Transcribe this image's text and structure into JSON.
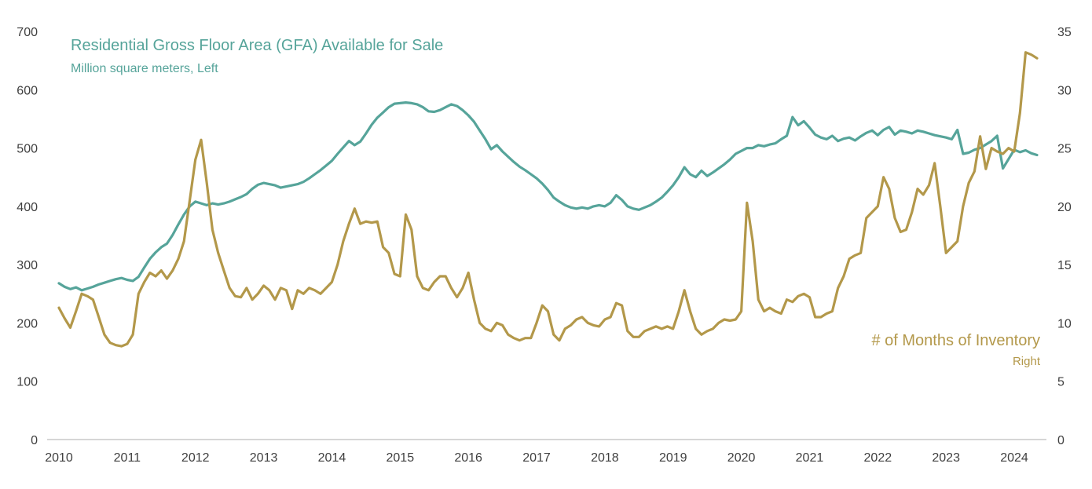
{
  "chart_data": {
    "type": "line",
    "title_left_series": "Residential Gross Floor Area (GFA) Available for Sale",
    "subtitle_left_series": "Million square meters, Left",
    "title_right_series": "# of Months of Inventory",
    "subtitle_right_series": "Right",
    "x_start": "2010-01",
    "x_labels": [
      "2010",
      "2011",
      "2012",
      "2013",
      "2014",
      "2015",
      "2016",
      "2017",
      "2018",
      "2019",
      "2020",
      "2021",
      "2022",
      "2023",
      "2024"
    ],
    "left_axis": {
      "min": 0,
      "max": 700,
      "ticks": [
        0,
        100,
        200,
        300,
        400,
        500,
        600,
        700
      ]
    },
    "right_axis": {
      "min": 0,
      "max": 35,
      "ticks": [
        0,
        5,
        10,
        15,
        20,
        25,
        30,
        35
      ]
    },
    "grid": "off",
    "legend": "inline-annotations",
    "colors": {
      "gfa": "#56A49A",
      "inventory": "#B3984A",
      "axis_text": "#3f3f3f",
      "axis_line": "#c9c9c9"
    },
    "series": [
      {
        "name": "Residential Gross Floor Area (GFA) Available for Sale",
        "axis": "left",
        "color": "#56A49A",
        "values": [
          268,
          262,
          258,
          261,
          256,
          259,
          262,
          266,
          269,
          272,
          275,
          277,
          274,
          272,
          279,
          295,
          310,
          321,
          330,
          336,
          351,
          369,
          386,
          400,
          408,
          405,
          402,
          405,
          403,
          405,
          408,
          412,
          416,
          421,
          430,
          437,
          440,
          438,
          436,
          432,
          434,
          436,
          438,
          442,
          448,
          455,
          462,
          470,
          478,
          490,
          501,
          512,
          505,
          511,
          525,
          540,
          552,
          561,
          570,
          576,
          577,
          578,
          577,
          575,
          570,
          563,
          562,
          565,
          570,
          575,
          572,
          565,
          556,
          545,
          530,
          515,
          498,
          505,
          494,
          485,
          476,
          468,
          462,
          455,
          448,
          439,
          428,
          415,
          408,
          402,
          398,
          396,
          398,
          396,
          400,
          402,
          400,
          406,
          419,
          411,
          400,
          396,
          394,
          398,
          402,
          408,
          415,
          425,
          436,
          450,
          467,
          455,
          450,
          461,
          452,
          458,
          465,
          472,
          480,
          490,
          495,
          500,
          500,
          505,
          503,
          506,
          508,
          515,
          521,
          553,
          539,
          546,
          535,
          523,
          518,
          515,
          521,
          512,
          516,
          518,
          513,
          520,
          526,
          530,
          522,
          531,
          536,
          523,
          530,
          528,
          525,
          530,
          528,
          525,
          522,
          520,
          518,
          515,
          531,
          490,
          492,
          497,
          500,
          506,
          512,
          521,
          465,
          481,
          497,
          493,
          496,
          491,
          488
        ]
      },
      {
        "name": "# of Months of Inventory",
        "axis": "right",
        "color": "#B3984A",
        "values": [
          11.3,
          10.4,
          9.6,
          11.0,
          12.5,
          12.3,
          12.0,
          10.5,
          9.0,
          8.3,
          8.1,
          8.0,
          8.2,
          9.0,
          12.5,
          13.5,
          14.3,
          14.0,
          14.5,
          13.8,
          14.5,
          15.5,
          17.0,
          20.5,
          24.0,
          25.7,
          22.0,
          18.0,
          16.0,
          14.5,
          13.0,
          12.3,
          12.2,
          13.0,
          12.0,
          12.5,
          13.2,
          12.8,
          12.0,
          13.0,
          12.8,
          11.2,
          12.8,
          12.5,
          13.0,
          12.8,
          12.5,
          13.0,
          13.5,
          15.0,
          17.0,
          18.5,
          19.8,
          18.5,
          18.7,
          18.6,
          18.7,
          16.5,
          16.0,
          14.2,
          14.0,
          19.3,
          18.0,
          14.0,
          13.0,
          12.8,
          13.5,
          14.0,
          14.0,
          13.0,
          12.2,
          13.0,
          14.3,
          12.0,
          10.0,
          9.5,
          9.3,
          10.0,
          9.8,
          9.0,
          8.7,
          8.5,
          8.7,
          8.7,
          10.0,
          11.5,
          11.0,
          9.0,
          8.5,
          9.5,
          9.8,
          10.3,
          10.5,
          10.0,
          9.8,
          9.7,
          10.3,
          10.5,
          11.7,
          11.5,
          9.3,
          8.8,
          8.8,
          9.3,
          9.5,
          9.7,
          9.5,
          9.7,
          9.5,
          11.0,
          12.8,
          11.0,
          9.5,
          9.0,
          9.3,
          9.5,
          10.0,
          10.3,
          10.2,
          10.3,
          11.0,
          20.3,
          17.0,
          12.0,
          11.0,
          11.3,
          11.0,
          10.8,
          12.0,
          11.8,
          12.3,
          12.5,
          12.2,
          10.5,
          10.5,
          10.8,
          11.0,
          13.0,
          14.0,
          15.5,
          15.8,
          16.0,
          19.0,
          19.5,
          20.0,
          22.5,
          21.5,
          19.0,
          17.8,
          18.0,
          19.5,
          21.5,
          21.0,
          21.8,
          23.7,
          20.0,
          16.0,
          16.5,
          17.0,
          20.0,
          22.0,
          23.0,
          26.0,
          23.2,
          25.0,
          24.7,
          24.5,
          25.0,
          24.7,
          28.0,
          33.2,
          33.0,
          32.7
        ]
      }
    ]
  }
}
